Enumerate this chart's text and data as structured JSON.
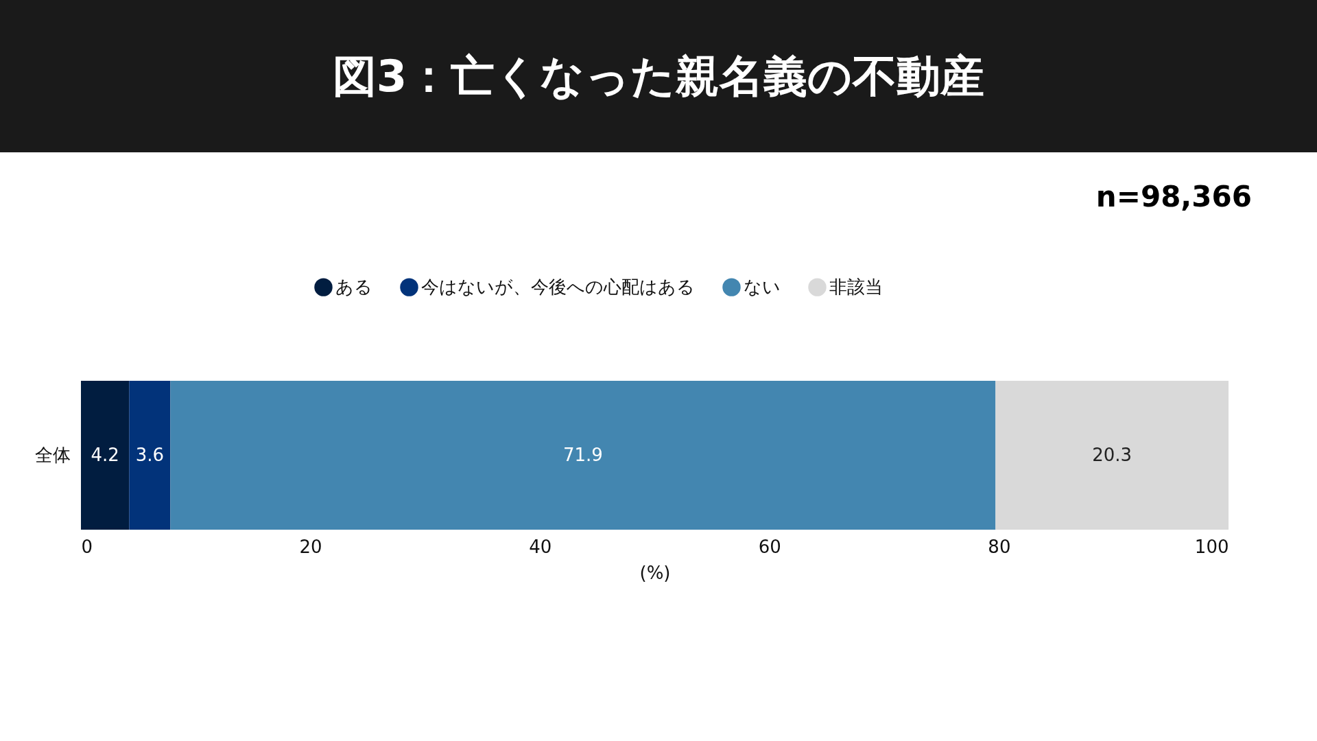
{
  "chart_data": {
    "type": "bar",
    "orientation": "horizontal",
    "stacked": true,
    "title": "図3：亡くなった親名義の不動産",
    "xlabel": "(%)",
    "annotations": [
      "n=98,366"
    ],
    "categories": [
      "全体"
    ],
    "series": [
      {
        "name": "ある",
        "color": "#011d40",
        "values": [
          4.2
        ]
      },
      {
        "name": "今はないが、今後への心配はある",
        "color": "#02337a",
        "values": [
          3.6
        ]
      },
      {
        "name": "ない",
        "color": "#4386b0",
        "values": [
          71.9
        ]
      },
      {
        "name": "非該当",
        "color": "#d9d9d9",
        "values": [
          20.3
        ]
      }
    ],
    "xlim": [
      0,
      100
    ],
    "xticks": [
      0,
      20,
      40,
      60,
      80,
      100
    ],
    "grid": false,
    "legend": "top",
    "data_labels": true
  }
}
